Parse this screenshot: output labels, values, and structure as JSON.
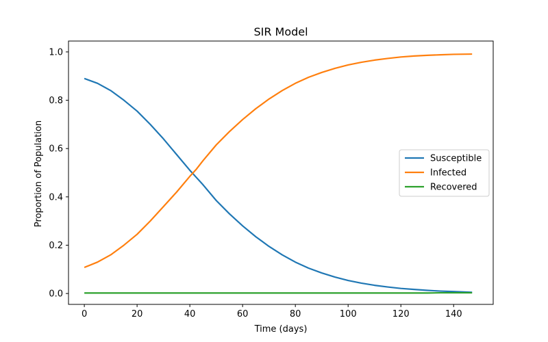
{
  "chart_data": {
    "type": "line",
    "title": "SIR Model",
    "xlabel": "Time (days)",
    "ylabel": "Proportion of Population",
    "xlim": [
      -6,
      155
    ],
    "ylim": [
      -0.045,
      1.045
    ],
    "xticks": [
      0,
      20,
      40,
      60,
      80,
      100,
      120,
      140
    ],
    "yticks": [
      0.0,
      0.2,
      0.4,
      0.6,
      0.8,
      1.0
    ],
    "xtick_labels": [
      "0",
      "20",
      "40",
      "60",
      "80",
      "100",
      "120",
      "140"
    ],
    "ytick_labels": [
      "0.0",
      "0.2",
      "0.4",
      "0.6",
      "0.8",
      "1.0"
    ],
    "grid": false,
    "legend_position": "center-right",
    "x": [
      0,
      5,
      10,
      15,
      20,
      25,
      30,
      35,
      40,
      42.5,
      45,
      50,
      55,
      60,
      65,
      70,
      75,
      80,
      85,
      90,
      95,
      100,
      105,
      110,
      115,
      120,
      125,
      130,
      135,
      140,
      147
    ],
    "series": [
      {
        "name": "Susceptible",
        "color": "#1f77b4",
        "values": [
          0.89,
          0.87,
          0.84,
          0.8,
          0.755,
          0.7,
          0.64,
          0.575,
          0.51,
          0.48,
          0.45,
          0.385,
          0.33,
          0.28,
          0.235,
          0.195,
          0.16,
          0.13,
          0.105,
          0.085,
          0.068,
          0.054,
          0.043,
          0.034,
          0.027,
          0.021,
          0.017,
          0.013,
          0.01,
          0.008,
          0.005
        ]
      },
      {
        "name": "Infected",
        "color": "#ff7f0e",
        "values": [
          0.108,
          0.13,
          0.16,
          0.2,
          0.245,
          0.3,
          0.36,
          0.42,
          0.485,
          0.515,
          0.55,
          0.615,
          0.67,
          0.72,
          0.765,
          0.805,
          0.84,
          0.87,
          0.895,
          0.915,
          0.932,
          0.946,
          0.957,
          0.966,
          0.973,
          0.979,
          0.983,
          0.986,
          0.988,
          0.99,
          0.991
        ]
      },
      {
        "name": "Recovered",
        "color": "#2ca02c",
        "values": [
          0.002,
          0.002,
          0.002,
          0.002,
          0.002,
          0.002,
          0.002,
          0.002,
          0.002,
          0.002,
          0.002,
          0.002,
          0.002,
          0.002,
          0.002,
          0.002,
          0.002,
          0.002,
          0.002,
          0.002,
          0.002,
          0.002,
          0.002,
          0.002,
          0.002,
          0.002,
          0.002,
          0.002,
          0.003,
          0.003,
          0.003
        ]
      }
    ]
  }
}
